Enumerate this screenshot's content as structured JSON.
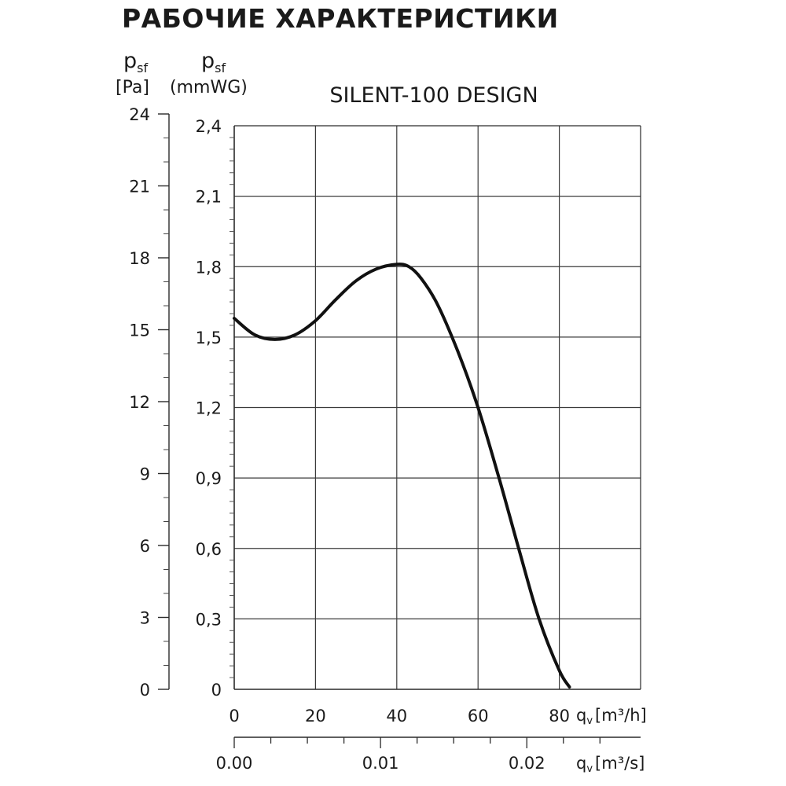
{
  "header": {
    "title": "РАБОЧИЕ ХАРАКТЕРИСТИКИ"
  },
  "chart_data": {
    "type": "line",
    "title": "SILENT-100 DESIGN",
    "x_label_primary": {
      "symbol": "q",
      "sub": "v",
      "unit": "[m³/h]"
    },
    "x_label_secondary": {
      "symbol": "q",
      "sub": "v",
      "unit": "[m³/s]"
    },
    "y_label_left": {
      "symbol": "p",
      "sub": "sf",
      "unit": "[Pa]"
    },
    "y_label_right": {
      "symbol": "p",
      "sub": "sf",
      "unit": "(mmWG)"
    },
    "xlim": [
      0,
      100
    ],
    "ylim": [
      0,
      2.4
    ],
    "x_ticks": [
      0,
      20,
      40,
      60,
      80
    ],
    "x_tick_labels": [
      "0",
      "20",
      "40",
      "60",
      "80"
    ],
    "x2_ticks": [
      0,
      0.01,
      0.02
    ],
    "x2_tick_labels": [
      "0.00",
      "0.01",
      "0.02"
    ],
    "y_ticks": [
      0,
      0.3,
      0.6,
      0.9,
      1.2,
      1.5,
      1.8,
      2.1,
      2.4
    ],
    "y_tick_labels_mmwg": [
      "0",
      "0,3",
      "0,6",
      "0,9",
      "1,2",
      "1,5",
      "1,8",
      "2,1",
      "2,4"
    ],
    "y_tick_labels_pa": [
      "0",
      "3",
      "6",
      "9",
      "12",
      "15",
      "18",
      "21",
      "24"
    ],
    "grid": true,
    "series": [
      {
        "x": [
          0,
          5,
          10,
          15,
          20,
          25,
          30,
          35,
          40,
          43,
          46,
          50,
          55,
          60,
          65,
          70,
          75,
          80,
          82.5
        ],
        "y": [
          1.58,
          1.51,
          1.49,
          1.51,
          1.57,
          1.66,
          1.74,
          1.79,
          1.81,
          1.8,
          1.75,
          1.64,
          1.44,
          1.2,
          0.91,
          0.6,
          0.3,
          0.08,
          0.01
        ]
      }
    ]
  }
}
